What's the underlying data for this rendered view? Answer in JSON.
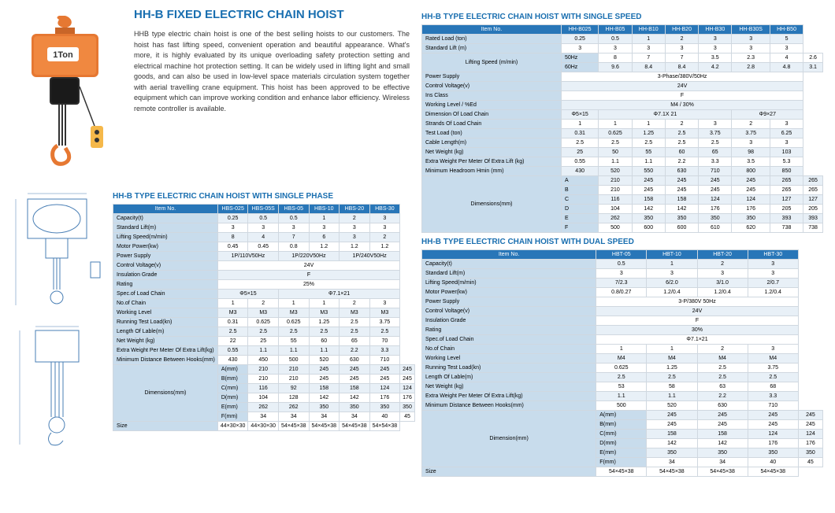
{
  "main_title": "HH-B FIXED ELECTRIC CHAIN HOIST",
  "description": "HHB type electric chain hoist is one of the best selling hoists to our customers. The hoist has fast lifting speed, convenient operation and beautiful appearance. What's more, it is highly evaluated by its unique overloading safety protection setting and electrical machine hot protection setting. It can be widely used in lifting light and small goods, and can also be used in low-level space materials circulation system together with aerial travelling crane equipment. This hoist has been approved to be effective equipment which can improve working condition and enhance labor efficiency. Wireless remote controller is available.",
  "colors": {
    "header": "#2876b8",
    "label_bg": "#c8dcec",
    "odd": "#e8f0f7",
    "title": "#1a6fb0",
    "hoist_orange": "#e67832",
    "hoist_dark": "#2a2a2a",
    "diagram_blue": "#4a7fb5"
  },
  "table1": {
    "title": "HH-B TYPE ELECTRIC CHAIN HOIST WITH SINGLE PHASE",
    "headers": [
      "Item No.",
      "HBS-025",
      "HBS-05S",
      "HBS-05",
      "HBS-10",
      "HBS-20",
      "HBS-30"
    ],
    "rows": [
      [
        "Capacity(t)",
        "0.25",
        "0.5",
        "0.5",
        "1",
        "2",
        "3"
      ],
      [
        "Standard Lift(m)",
        "3",
        "3",
        "3",
        "3",
        "3",
        "3"
      ],
      [
        "Lifting Speed(m/min)",
        "8",
        "4",
        "7",
        "6",
        "3",
        "2"
      ],
      [
        "Motor Power(kw)",
        "0.45",
        "0.45",
        "0.8",
        "1.2",
        "1.2",
        "1.2"
      ]
    ],
    "power_supply": {
      "label": "Power Supply",
      "spans": [
        "1P/110V50Hz",
        "1P/220V50Hz",
        "1P/240V50Hz"
      ]
    },
    "single_rows": [
      [
        "Control Voltage(v)",
        "24V"
      ],
      [
        "Insulation Grade",
        "F"
      ],
      [
        "Rating",
        "25%"
      ]
    ],
    "load_chain": {
      "label": "Spec.of Load Chain",
      "vals": [
        "Φ5×15",
        "Φ7.1×21"
      ]
    },
    "rows2": [
      [
        "No.of Chain",
        "1",
        "2",
        "1",
        "1",
        "2",
        "3"
      ],
      [
        "Working Level",
        "M3",
        "M3",
        "M3",
        "M3",
        "M3",
        "M3"
      ],
      [
        "Running Test Load(kn)",
        "0.31",
        "0.625",
        "0.625",
        "1.25",
        "2.5",
        "3.75"
      ],
      [
        "Length Of Lable(m)",
        "2.5",
        "2.5",
        "2.5",
        "2.5",
        "2.5",
        "2.5"
      ],
      [
        "Net Weight (kg)",
        "22",
        "25",
        "55",
        "60",
        "65",
        "70"
      ],
      [
        "Extra Weight Per Meter Of Extra Lift(kg)",
        "0.55",
        "1.1",
        "1.1",
        "1.1",
        "2.2",
        "3.3"
      ],
      [
        "Minimum Distance Between Hooks(mm)",
        "430",
        "450",
        "500",
        "520",
        "630",
        "710"
      ]
    ],
    "dims": {
      "label": "Dimensions(mm)",
      "rows": [
        [
          "A(mm)",
          "210",
          "210",
          "245",
          "245",
          "245",
          "245"
        ],
        [
          "B(mm)",
          "210",
          "210",
          "245",
          "245",
          "245",
          "245"
        ],
        [
          "C(mm)",
          "116",
          "92",
          "158",
          "158",
          "124",
          "124"
        ],
        [
          "D(mm)",
          "104",
          "128",
          "142",
          "142",
          "176",
          "176"
        ],
        [
          "E(mm)",
          "262",
          "262",
          "350",
          "350",
          "350",
          "350"
        ],
        [
          "F(mm)",
          "34",
          "34",
          "34",
          "34",
          "40",
          "45"
        ]
      ]
    },
    "size": [
      "Size",
      "44×30×30",
      "44×30×30",
      "54×45×38",
      "54×45×38",
      "54×45×38",
      "54×54×38"
    ]
  },
  "table2": {
    "title": "HH-B TYPE ELECTRIC CHAIN HOIST WITH SINGLE SPEED",
    "headers": [
      "Item No.",
      "HH-B025",
      "HH-B05",
      "HH-B10",
      "HH-B20",
      "HH-B30",
      "HH-B30S",
      "HH-B50"
    ],
    "rows": [
      [
        "Rated Load (ton)",
        "0.25",
        "0.5",
        "1",
        "2",
        "3",
        "3",
        "5"
      ],
      [
        "Standard Lift (m)",
        "3",
        "3",
        "3",
        "3",
        "3",
        "3",
        "3"
      ]
    ],
    "speed": {
      "label": "Lifting Speed (m/min)",
      "sub": [
        [
          "50Hz",
          "8",
          "7",
          "7",
          "3.5",
          "2.3",
          "4",
          "2.6"
        ],
        [
          "60Hz",
          "9.6",
          "8.4",
          "8.4",
          "4.2",
          "2.8",
          "4.8",
          "3.1"
        ]
      ]
    },
    "single_rows": [
      [
        "Power Supply",
        "3-Phase/380V/50Hz"
      ],
      [
        "Control Voltage(v)",
        "24V"
      ],
      [
        "Ins Class",
        "F"
      ],
      [
        "Working Level / %Ed",
        "M4 / 30%"
      ]
    ],
    "load_chain": {
      "label": "Dimension Of Load Chain",
      "vals": [
        "Φ5×15",
        "Φ7.1X 21",
        "Φ9×27"
      ]
    },
    "rows2": [
      [
        "Strands Of Load Chain",
        "1",
        "1",
        "1",
        "2",
        "3",
        "2",
        "3"
      ],
      [
        "Test Load (ton)",
        "0.31",
        "0.625",
        "1.25",
        "2.5",
        "3.75",
        "3.75",
        "6.25"
      ],
      [
        "Cable Length(m)",
        "2.5",
        "2.5",
        "2.5",
        "2.5",
        "2.5",
        "3",
        "3"
      ],
      [
        "Net Weight (kg)",
        "25",
        "50",
        "55",
        "60",
        "65",
        "98",
        "103"
      ],
      [
        "Extra Weight Per Meter  Of Extra Lift (kg)",
        "0.55",
        "1.1",
        "1.1",
        "2.2",
        "3.3",
        "3.5",
        "5.3"
      ],
      [
        "Minimum Headroom  Hmin (mm)",
        "430",
        "520",
        "550",
        "630",
        "710",
        "800",
        "850"
      ]
    ],
    "dims": {
      "label": "Dimensions(mm)",
      "rows": [
        [
          "A",
          "210",
          "245",
          "245",
          "245",
          "245",
          "265",
          "265"
        ],
        [
          "B",
          "210",
          "245",
          "245",
          "245",
          "245",
          "265",
          "265"
        ],
        [
          "C",
          "116",
          "158",
          "158",
          "124",
          "124",
          "127",
          "127"
        ],
        [
          "D",
          "104",
          "142",
          "142",
          "176",
          "176",
          "205",
          "205"
        ],
        [
          "E",
          "262",
          "350",
          "350",
          "350",
          "350",
          "393",
          "393"
        ],
        [
          "F",
          "500",
          "600",
          "600",
          "610",
          "620",
          "738",
          "738"
        ]
      ]
    }
  },
  "table3": {
    "title": "HH-B TYPE ELECTRIC CHAIN HOIST WITH DUAL SPEED",
    "headers": [
      "Item No.",
      "HBT-05",
      "HBT-10",
      "HBT-20",
      "HBT-30"
    ],
    "rows": [
      [
        "Capacity(t)",
        "0.5",
        "1",
        "2",
        "3"
      ],
      [
        "Standard Lift(m)",
        "3",
        "3",
        "3",
        "3"
      ],
      [
        "Lifting Speed(m/min)",
        "7/2.3",
        "6/2.0",
        "3/1.0",
        "2/0.7"
      ],
      [
        "Motor Power(kw)",
        "0.8/0.27",
        "1.2/0.4",
        "1.2/0.4",
        "1.2/0.4"
      ]
    ],
    "single_rows": [
      [
        "Power Supply",
        "3-P/380V 50Hz"
      ],
      [
        "Control Voltage(v)",
        "24V"
      ],
      [
        "Insulation Grade",
        "F"
      ],
      [
        "Rating",
        "30%"
      ],
      [
        "Spec.of Load Chain",
        "Φ7.1×21"
      ]
    ],
    "rows2": [
      [
        "No.of Chain",
        "1",
        "1",
        "2",
        "3"
      ],
      [
        "Working Level",
        "M4",
        "M4",
        "M4",
        "M4"
      ],
      [
        "Running Test Load(kn)",
        "0.625",
        "1.25",
        "2.5",
        "3.75"
      ],
      [
        "Length Of Lable(m)",
        "2.5",
        "2.5",
        "2.5",
        "2.5"
      ],
      [
        "Net Weight (kg)",
        "53",
        "58",
        "63",
        "68"
      ],
      [
        "Extra Weight Per Meter Of Extra Lift(kg)",
        "1.1",
        "1.1",
        "2.2",
        "3.3"
      ],
      [
        "Minimum Distance Between Hooks(mm)",
        "500",
        "520",
        "630",
        "710"
      ]
    ],
    "dims": {
      "label": "Dimension(mm)",
      "rows": [
        [
          "A(mm)",
          "245",
          "245",
          "245",
          "245"
        ],
        [
          "B(mm)",
          "245",
          "245",
          "245",
          "245"
        ],
        [
          "C(mm)",
          "158",
          "158",
          "124",
          "124"
        ],
        [
          "D(mm)",
          "142",
          "142",
          "176",
          "176"
        ],
        [
          "E(mm)",
          "350",
          "350",
          "350",
          "350"
        ],
        [
          "F(mm)",
          "34",
          "34",
          "40",
          "45"
        ]
      ]
    },
    "size": [
      "Size",
      "54×45×38",
      "54×45×38",
      "54×45×38",
      "54×45×38"
    ]
  }
}
